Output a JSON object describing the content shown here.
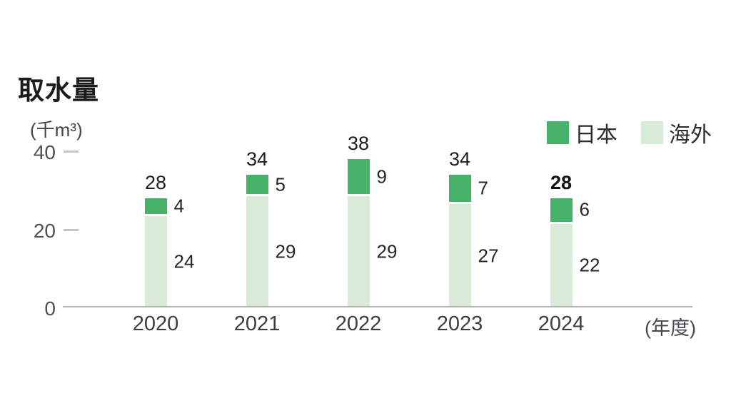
{
  "header": {
    "title": "取水量"
  },
  "legend": {
    "items": [
      {
        "label": "日本",
        "color": "#46b168"
      },
      {
        "label": "海外",
        "color": "#d8ebd9"
      }
    ]
  },
  "axes": {
    "y_unit": "(千m³)",
    "x_unit": "(年度)",
    "y_ticks": [
      "0",
      "20",
      "40"
    ]
  },
  "chart_data": {
    "type": "bar",
    "stacked": true,
    "title": "取水量",
    "ylabel": "(千m³)",
    "xlabel": "(年度)",
    "categories": [
      "2020",
      "2021",
      "2022",
      "2023",
      "2024"
    ],
    "series": [
      {
        "name": "日本",
        "color": "#46b168",
        "values": [
          4,
          5,
          9,
          7,
          6
        ]
      },
      {
        "name": "海外",
        "color": "#d8ebd9",
        "values": [
          24,
          29,
          29,
          27,
          22
        ]
      }
    ],
    "totals": [
      28,
      34,
      38,
      34,
      28
    ],
    "highlighted_total_index": 4,
    "ylim": [
      0,
      40
    ],
    "yticks": [
      0,
      20,
      40
    ],
    "grid": false,
    "legend_position": "top-right"
  }
}
